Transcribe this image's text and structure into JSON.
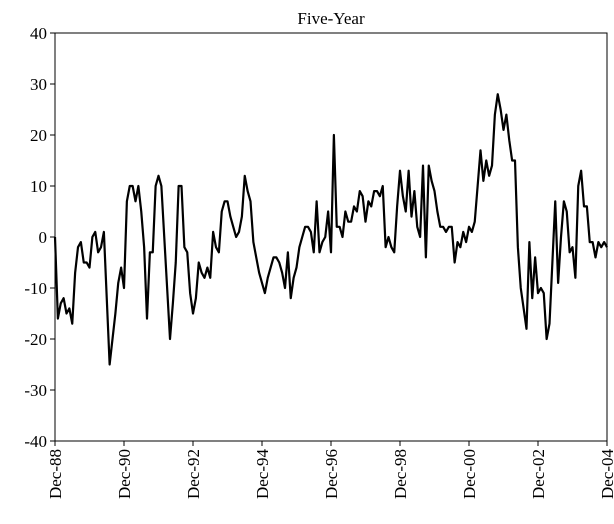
{
  "chart_data": {
    "type": "line",
    "title": "Five-Year",
    "color": "#000000",
    "categories": [
      "Dec-88",
      null,
      null,
      null,
      null,
      null,
      null,
      null,
      null,
      null,
      null,
      null,
      null,
      null,
      null,
      null,
      null,
      null,
      null,
      null,
      null,
      null,
      null,
      null,
      "Dec-90",
      null,
      null,
      null,
      null,
      null,
      null,
      null,
      null,
      null,
      null,
      null,
      null,
      null,
      null,
      null,
      null,
      null,
      null,
      null,
      null,
      null,
      null,
      null,
      "Dec-92",
      null,
      null,
      null,
      null,
      null,
      null,
      null,
      null,
      null,
      null,
      null,
      null,
      null,
      null,
      null,
      null,
      null,
      null,
      null,
      null,
      null,
      null,
      null,
      "Dec-94",
      null,
      null,
      null,
      null,
      null,
      null,
      null,
      null,
      null,
      null,
      null,
      null,
      null,
      null,
      null,
      null,
      null,
      null,
      null,
      null,
      null,
      null,
      null,
      "Dec-96",
      null,
      null,
      null,
      null,
      null,
      null,
      null,
      null,
      null,
      null,
      null,
      null,
      null,
      null,
      null,
      null,
      null,
      null,
      null,
      null,
      null,
      null,
      null,
      "Dec-98",
      null,
      null,
      null,
      null,
      null,
      null,
      null,
      null,
      null,
      null,
      null,
      null,
      null,
      null,
      null,
      null,
      null,
      null,
      null,
      null,
      null,
      null,
      null,
      "Dec-00",
      null,
      null,
      null,
      null,
      null,
      null,
      null,
      null,
      null,
      null,
      null,
      null,
      null,
      null,
      null,
      null,
      null,
      null,
      null,
      null,
      null,
      null,
      null,
      "Dec-02",
      null,
      null,
      null,
      null,
      null,
      null,
      null,
      null,
      null,
      null,
      null,
      null,
      null,
      null,
      null,
      null,
      null,
      null,
      null,
      null,
      null,
      null,
      null,
      "Dec-04"
    ],
    "values": [
      0,
      -16,
      -13,
      -12,
      -15,
      -14,
      -17,
      -7,
      -2,
      -1,
      -5,
      -5,
      -6,
      0,
      1,
      -3,
      -2,
      1,
      -12,
      -25,
      -20,
      -15,
      -9,
      -6,
      -10,
      7,
      10,
      10,
      7,
      10,
      5,
      -2,
      -16,
      -3,
      -3,
      10,
      12,
      10,
      0,
      -10,
      -20,
      -13,
      -5,
      10,
      10,
      -2,
      -3,
      -11,
      -15,
      -12,
      -5,
      -7,
      -8,
      -6,
      -8,
      1,
      -2,
      -3,
      5,
      7,
      7,
      4,
      2,
      0,
      1,
      4,
      12,
      9,
      7,
      -1,
      -4,
      -7,
      -9,
      -11,
      -8,
      -6,
      -4,
      -4,
      -5,
      -7,
      -10,
      -3,
      -12,
      -8,
      -6,
      -2,
      0,
      2,
      2,
      1,
      -3,
      7,
      -3,
      -1,
      0,
      5,
      -3,
      20,
      2,
      2,
      0,
      5,
      3,
      3,
      6,
      5,
      9,
      8,
      3,
      7,
      6,
      9,
      9,
      8,
      10,
      -2,
      0,
      -2,
      -3,
      6,
      13,
      8,
      5,
      13,
      4,
      9,
      2,
      0,
      14,
      -4,
      14,
      11,
      9,
      5,
      2,
      2,
      1,
      2,
      2,
      -5,
      -1,
      -2,
      1,
      -1,
      2,
      1,
      3,
      10,
      17,
      11,
      15,
      12,
      14,
      24,
      28,
      25,
      21,
      24,
      19,
      15,
      15,
      -2,
      -10,
      -14,
      -18,
      -1,
      -12,
      -4,
      -11,
      -10,
      -11,
      -20,
      -17,
      -5,
      7,
      -9,
      0,
      7,
      5,
      -3,
      -2,
      -8,
      10,
      13,
      6,
      6,
      -1,
      -1,
      -4,
      -1,
      -2,
      -1,
      -2
    ],
    "ylim": [
      -40,
      40
    ],
    "yticks": [
      -40,
      -30,
      -20,
      -10,
      0,
      10,
      20,
      30,
      40
    ]
  }
}
